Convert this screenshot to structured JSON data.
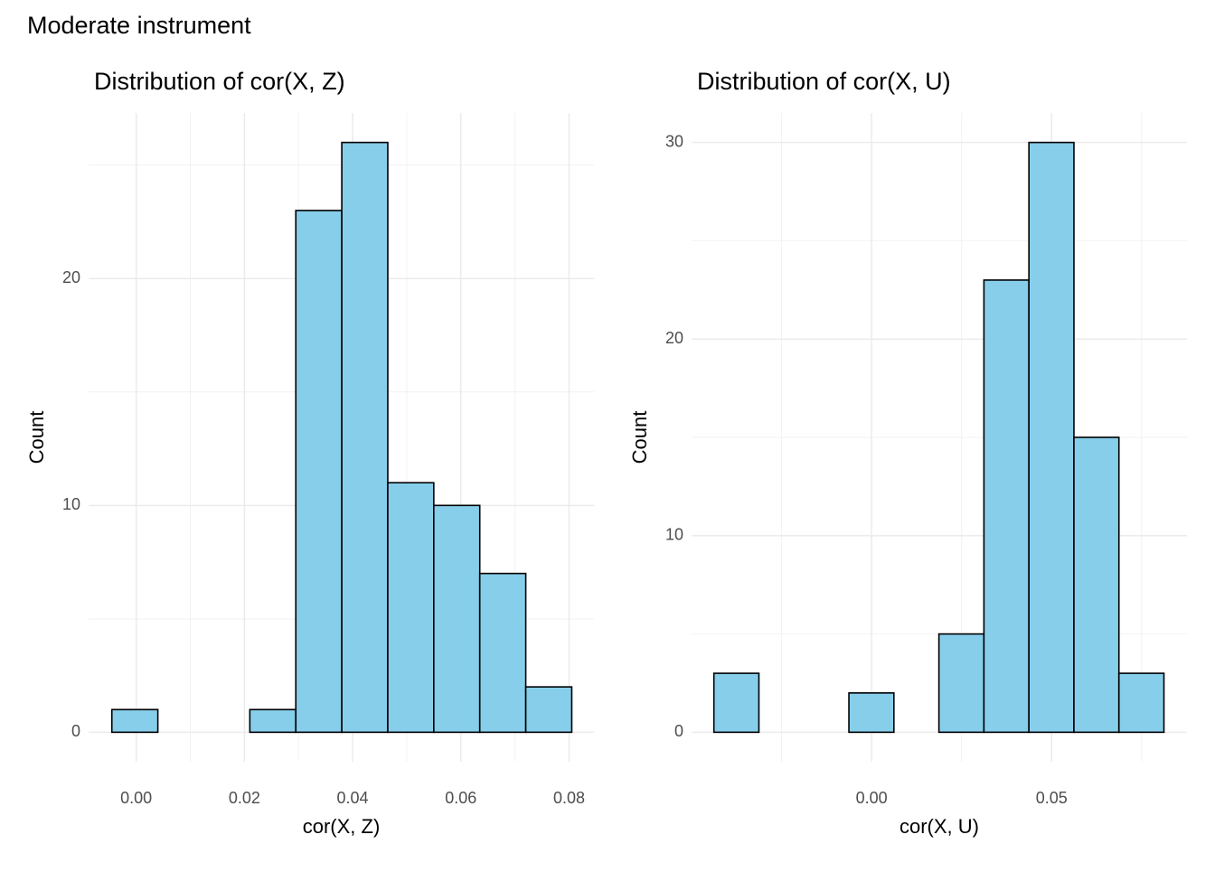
{
  "title": "Moderate instrument",
  "chart_data": [
    {
      "type": "histogram",
      "title": "Distribution of cor(X, Z)",
      "x_label": "cor(X, Z)",
      "y_label": "Count",
      "bins": [
        -0.0045,
        0.004,
        0.0125,
        0.021,
        0.0295,
        0.038,
        0.0465,
        0.055,
        0.0635,
        0.072,
        0.0805
      ],
      "values": [
        1,
        0,
        0,
        1,
        23,
        26,
        11,
        10,
        7,
        2
      ],
      "color": "#87ceeb",
      "edge_color": "#000000",
      "xlim": [
        -0.0088,
        0.0846
      ],
      "ylim": [
        -1.3,
        27.3
      ],
      "xticks": [
        {
          "value": 0,
          "label": "0.00"
        },
        0.02,
        0.04,
        0.06,
        0.08
      ],
      "yticks": [
        0,
        10,
        20
      ],
      "x_minor_grid": [
        0.01,
        0.03,
        0.05,
        0.07
      ],
      "y_minor_grid": [
        5,
        15,
        25
      ],
      "grid": true
    },
    {
      "type": "histogram",
      "title": "Distribution of cor(X, U)",
      "x_label": "cor(X, U)",
      "y_label": "Count",
      "bins": [
        -0.0438,
        -0.0313,
        -0.0188,
        -0.0063,
        0.0062,
        0.0187,
        0.0312,
        0.0437,
        0.0562,
        0.0687,
        0.0812
      ],
      "values": [
        3,
        0,
        0,
        2,
        0,
        5,
        23,
        30,
        15,
        3
      ],
      "color": "#87ceeb",
      "edge_color": "#000000",
      "xlim": [
        -0.05,
        0.0876
      ],
      "ylim": [
        -1.5,
        31.5
      ],
      "xticks": [
        {
          "value": 0,
          "label": "0.00"
        },
        0.05
      ],
      "yticks": [
        0,
        10,
        20,
        30
      ],
      "x_minor_grid": [
        -0.025,
        0.025,
        0.075
      ],
      "y_minor_grid": [
        5,
        15,
        25
      ],
      "grid": true
    }
  ]
}
